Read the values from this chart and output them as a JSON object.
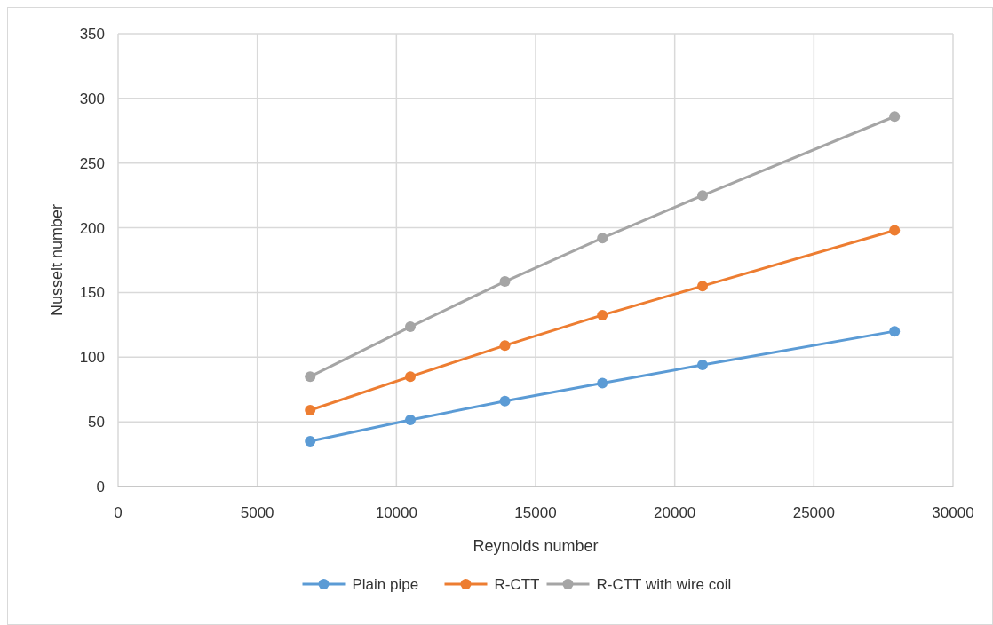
{
  "chart_data": {
    "type": "line",
    "xlabel": "Reynolds number",
    "ylabel": "Nusselt number",
    "xlim": [
      0,
      30000
    ],
    "xticks": [
      0,
      5000,
      10000,
      15000,
      20000,
      25000,
      30000
    ],
    "ylim": [
      0,
      350
    ],
    "yticks": [
      0,
      50,
      100,
      150,
      200,
      250,
      300,
      350
    ],
    "grid": true,
    "legend": "bottom",
    "marker": "circle",
    "line_style": "solid",
    "x": [
      6900,
      10500,
      13900,
      17400,
      21000,
      27900
    ],
    "series": [
      {
        "name": "Plain pipe",
        "color": "#5b9bd5",
        "values": [
          35,
          51.5,
          66,
          80,
          94,
          120
        ]
      },
      {
        "name": "R-CTT",
        "color": "#ed7d31",
        "values": [
          59,
          85,
          109,
          132.5,
          155,
          198
        ]
      },
      {
        "name": "R-CTT with wire coil",
        "color": "#a5a5a5",
        "values": [
          85,
          123.5,
          158.5,
          192,
          225,
          286
        ]
      }
    ]
  }
}
